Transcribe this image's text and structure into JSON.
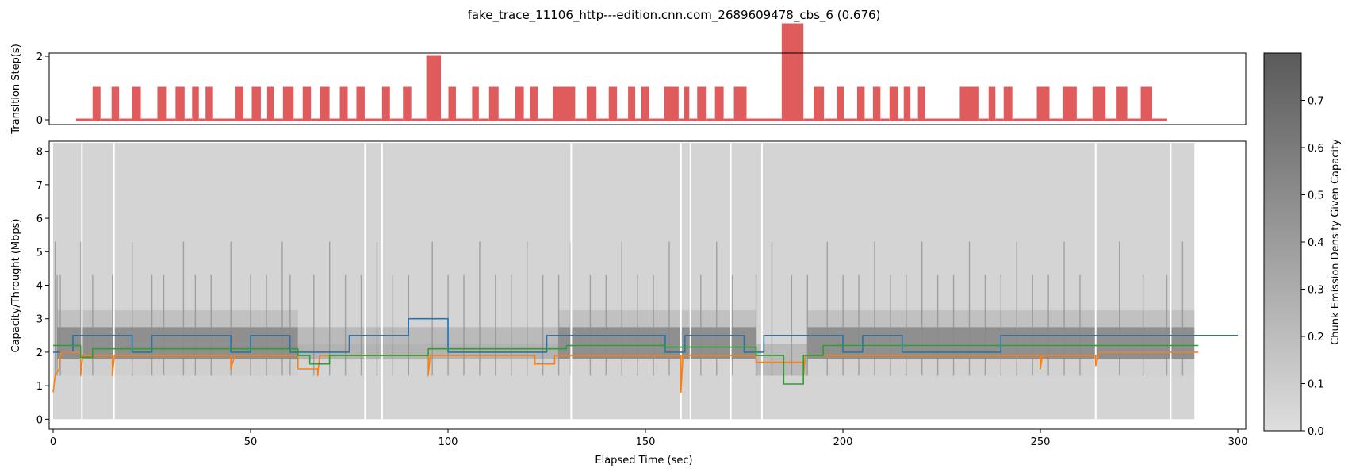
{
  "figure": {
    "title": "fake_trace_11106_http---edition.cnn.com_2689609478_cbs_6 (0.676)"
  },
  "chart_data": [
    {
      "type": "bar",
      "panel": "top",
      "ylabel": "Transition Step(s)",
      "xlim": [
        -1,
        302
      ],
      "ylim": [
        -0.15,
        2.1
      ],
      "yticks": [
        0,
        2
      ],
      "color": "#e05c5c",
      "bars": [
        [
          5.8,
          10.0,
          0
        ],
        [
          10.0,
          12.0,
          1
        ],
        [
          12.0,
          14.8,
          0
        ],
        [
          14.8,
          16.7,
          1
        ],
        [
          16.7,
          20.0,
          0
        ],
        [
          20.0,
          22.2,
          1
        ],
        [
          22.2,
          26.4,
          0
        ],
        [
          26.4,
          28.6,
          1
        ],
        [
          28.6,
          31.0,
          0
        ],
        [
          31.0,
          33.3,
          1
        ],
        [
          33.3,
          35.2,
          0
        ],
        [
          35.2,
          36.9,
          1
        ],
        [
          36.9,
          38.6,
          0
        ],
        [
          38.6,
          40.3,
          1
        ],
        [
          40.3,
          46.0,
          0
        ],
        [
          46.0,
          48.2,
          1
        ],
        [
          48.2,
          50.3,
          0
        ],
        [
          50.3,
          52.6,
          1
        ],
        [
          52.6,
          54.2,
          0
        ],
        [
          54.2,
          55.9,
          1
        ],
        [
          55.9,
          58.2,
          0
        ],
        [
          58.2,
          60.9,
          1
        ],
        [
          60.9,
          63.2,
          0
        ],
        [
          63.2,
          65.3,
          1
        ],
        [
          65.3,
          67.6,
          0
        ],
        [
          67.6,
          70.0,
          1
        ],
        [
          70.0,
          72.6,
          0
        ],
        [
          72.6,
          74.6,
          1
        ],
        [
          74.6,
          76.8,
          0
        ],
        [
          76.8,
          78.9,
          1
        ],
        [
          78.9,
          83.3,
          0
        ],
        [
          83.3,
          85.3,
          1
        ],
        [
          85.3,
          88.6,
          0
        ],
        [
          88.6,
          90.7,
          1
        ],
        [
          90.7,
          94.5,
          0
        ],
        [
          94.5,
          98.2,
          2
        ],
        [
          98.2,
          100.1,
          0
        ],
        [
          100.1,
          102.0,
          1
        ],
        [
          102.0,
          106.1,
          0
        ],
        [
          106.1,
          107.8,
          1
        ],
        [
          107.8,
          110.4,
          0
        ],
        [
          110.4,
          112.8,
          1
        ],
        [
          112.8,
          117.0,
          0
        ],
        [
          117.0,
          119.2,
          1
        ],
        [
          119.2,
          120.8,
          0
        ],
        [
          120.8,
          122.8,
          1
        ],
        [
          122.8,
          126.5,
          0
        ],
        [
          126.5,
          132.2,
          1
        ],
        [
          132.2,
          135.1,
          0
        ],
        [
          135.1,
          137.6,
          1
        ],
        [
          137.6,
          140.7,
          0
        ],
        [
          140.7,
          142.8,
          1
        ],
        [
          142.8,
          145.6,
          0
        ],
        [
          145.6,
          147.4,
          1
        ],
        [
          147.4,
          148.9,
          0
        ],
        [
          148.9,
          150.9,
          1
        ],
        [
          150.9,
          154.8,
          0
        ],
        [
          154.8,
          158.4,
          1
        ],
        [
          158.4,
          159.8,
          0
        ],
        [
          159.8,
          161.1,
          1
        ],
        [
          161.1,
          163.1,
          0
        ],
        [
          163.1,
          165.3,
          1
        ],
        [
          165.3,
          167.6,
          0
        ],
        [
          167.6,
          169.8,
          1
        ],
        [
          169.8,
          172.4,
          0
        ],
        [
          172.4,
          175.6,
          1
        ],
        [
          175.6,
          184.5,
          0
        ],
        [
          184.5,
          190.0,
          3
        ],
        [
          190.0,
          192.6,
          0
        ],
        [
          192.6,
          195.2,
          1
        ],
        [
          195.2,
          198.4,
          0
        ],
        [
          198.4,
          200.2,
          1
        ],
        [
          200.2,
          203.6,
          0
        ],
        [
          203.6,
          205.5,
          1
        ],
        [
          205.5,
          207.6,
          0
        ],
        [
          207.6,
          209.5,
          1
        ],
        [
          209.5,
          211.8,
          0
        ],
        [
          211.8,
          214.0,
          1
        ],
        [
          214.0,
          215.4,
          0
        ],
        [
          215.4,
          217.1,
          1
        ],
        [
          217.1,
          219.0,
          0
        ],
        [
          219.0,
          220.8,
          1
        ],
        [
          220.8,
          229.6,
          0
        ],
        [
          229.6,
          234.5,
          1
        ],
        [
          234.5,
          236.9,
          0
        ],
        [
          236.9,
          238.6,
          1
        ],
        [
          238.6,
          240.7,
          0
        ],
        [
          240.7,
          242.9,
          1
        ],
        [
          242.9,
          249.1,
          0
        ],
        [
          249.1,
          252.3,
          1
        ],
        [
          252.3,
          255.6,
          0
        ],
        [
          255.6,
          259.2,
          1
        ],
        [
          259.2,
          263.2,
          0
        ],
        [
          263.2,
          266.5,
          1
        ],
        [
          266.5,
          269.3,
          0
        ],
        [
          269.3,
          272.0,
          1
        ],
        [
          272.0,
          275.4,
          0
        ],
        [
          275.4,
          278.3,
          1
        ],
        [
          278.3,
          282.1,
          0
        ]
      ]
    },
    {
      "type": "heatmap",
      "panel": "main",
      "xlabel": "Elapsed Time (sec)",
      "ylabel": "Capacity/Throught (Mbps)",
      "xlim": [
        -1,
        302
      ],
      "ylim": [
        -0.3,
        8.3
      ],
      "xticks": [
        0,
        50,
        100,
        150,
        200,
        250,
        300
      ],
      "yticks": [
        0,
        1,
        2,
        3,
        4,
        5,
        6,
        7,
        8
      ],
      "heatmap": {
        "y_extent": [
          0,
          8.25
        ],
        "x_extent": [
          0,
          289
        ],
        "levels": [
          [
            0,
            8.25,
            0.06
          ]
        ],
        "bands": [
          [
            1,
            62,
            1.8,
            2.75,
            0.55
          ],
          [
            1,
            62,
            2.75,
            3.25,
            0.2
          ],
          [
            1,
            62,
            1.3,
            1.8,
            0.1
          ],
          [
            62,
            128,
            1.8,
            2.25,
            0.3
          ],
          [
            62,
            128,
            2.25,
            2.75,
            0.25
          ],
          [
            128,
            178,
            1.8,
            2.75,
            0.55
          ],
          [
            128,
            178,
            2.75,
            3.25,
            0.2
          ],
          [
            178,
            191,
            1.3,
            2.25,
            0.25
          ],
          [
            191,
            289,
            1.8,
            2.75,
            0.55
          ],
          [
            191,
            289,
            2.75,
            3.25,
            0.2
          ],
          [
            191,
            289,
            1.3,
            1.8,
            0.08
          ]
        ],
        "spikes": [
          0.5,
          1.0,
          1.8,
          7.0,
          10.0,
          15.0,
          20.0,
          25.0,
          28.0,
          33.0,
          36.0,
          40.0,
          45.0,
          50.0,
          54.0,
          58.0,
          60.0,
          66.0,
          70.0,
          74.0,
          78.0,
          82.0,
          86.0,
          90.0,
          96.0,
          100.0,
          104.0,
          108.0,
          112.0,
          116.0,
          120.0,
          124.0,
          128.0,
          131.0,
          136.0,
          140.0,
          144.0,
          148.0,
          152.0,
          156.0,
          159.0,
          164.0,
          168.0,
          172.0,
          178.0,
          182.0,
          187.0,
          191.0,
          196.0,
          200.0,
          204.0,
          208.0,
          212.0,
          216.0,
          220.0,
          224.0,
          228.0,
          232.0,
          236.0,
          240.0,
          244.0,
          248.0,
          252.0,
          256.0,
          260.0,
          264.0,
          270.0,
          276.0,
          282.0,
          286.0
        ],
        "gaps": [
          7.3,
          15.4,
          79.0,
          83.3,
          131.2,
          159.0,
          161.4,
          171.6,
          179.5,
          264.0,
          283.0
        ]
      },
      "colorbar": {
        "label": "Chunk Emission Density Given Capacity",
        "range": [
          0,
          0.8
        ],
        "ticks": [
          "0.0",
          "0.1",
          "0.2",
          "0.3",
          "0.4",
          "0.5",
          "0.6",
          "0.7"
        ]
      },
      "series": [
        {
          "color": "#1f77b4",
          "points": [
            [
              0,
              2.0
            ],
            [
              5,
              2.0
            ],
            [
              5,
              2.5
            ],
            [
              20,
              2.5
            ],
            [
              20,
              2.0
            ],
            [
              25,
              2.0
            ],
            [
              25,
              2.5
            ],
            [
              45,
              2.5
            ],
            [
              45,
              2.0
            ],
            [
              50,
              2.0
            ],
            [
              50,
              2.5
            ],
            [
              60,
              2.5
            ],
            [
              60,
              2.0
            ],
            [
              75,
              2.0
            ],
            [
              75,
              2.5
            ],
            [
              90,
              2.5
            ],
            [
              90,
              3.0
            ],
            [
              100,
              3.0
            ],
            [
              100,
              2.0
            ],
            [
              125,
              2.0
            ],
            [
              125,
              2.5
            ],
            [
              155,
              2.5
            ],
            [
              155,
              2.0
            ],
            [
              160,
              2.0
            ],
            [
              160,
              2.5
            ],
            [
              175,
              2.5
            ],
            [
              175,
              2.0
            ],
            [
              180,
              2.0
            ],
            [
              180,
              2.5
            ],
            [
              200,
              2.5
            ],
            [
              200,
              2.0
            ],
            [
              205,
              2.0
            ],
            [
              205,
              2.5
            ],
            [
              215,
              2.5
            ],
            [
              215,
              2.0
            ],
            [
              240,
              2.0
            ],
            [
              240,
              2.5
            ],
            [
              300,
              2.5
            ]
          ]
        },
        {
          "color": "#ff7f0e",
          "points": [
            [
              0,
              0.8
            ],
            [
              0.5,
              1.3
            ],
            [
              1.5,
              1.5
            ],
            [
              2,
              2.0
            ],
            [
              7,
              2.0
            ],
            [
              7,
              1.3
            ],
            [
              7.5,
              1.9
            ],
            [
              15,
              1.9
            ],
            [
              15,
              1.3
            ],
            [
              15.5,
              1.9
            ],
            [
              45,
              1.9
            ],
            [
              45,
              1.5
            ],
            [
              46,
              1.9
            ],
            [
              62,
              1.9
            ],
            [
              62,
              1.5
            ],
            [
              67,
              1.5
            ],
            [
              67,
              1.3
            ],
            [
              67.5,
              1.9
            ],
            [
              95,
              1.9
            ],
            [
              95,
              1.3
            ],
            [
              95.5,
              1.9
            ],
            [
              122,
              1.9
            ],
            [
              122,
              1.65
            ],
            [
              127,
              1.65
            ],
            [
              127,
              1.9
            ],
            [
              155,
              1.9
            ],
            [
              159,
              1.9
            ],
            [
              159,
              0.8
            ],
            [
              159.5,
              1.9
            ],
            [
              178,
              1.9
            ],
            [
              178,
              1.7
            ],
            [
              190,
              1.7
            ],
            [
              190,
              1.3
            ],
            [
              190.5,
              1.9
            ],
            [
              250,
              1.9
            ],
            [
              250,
              1.5
            ],
            [
              250.5,
              1.9
            ],
            [
              264,
              1.9
            ],
            [
              264,
              1.6
            ],
            [
              265,
              2.0
            ],
            [
              290,
              2.0
            ]
          ]
        },
        {
          "color": "#2ca02c",
          "points": [
            [
              0,
              2.2
            ],
            [
              7,
              2.2
            ],
            [
              7,
              1.85
            ],
            [
              10,
              1.85
            ],
            [
              10,
              2.1
            ],
            [
              62,
              2.1
            ],
            [
              62,
              1.9
            ],
            [
              65,
              1.9
            ],
            [
              65,
              1.65
            ],
            [
              70,
              1.65
            ],
            [
              70,
              1.9
            ],
            [
              95,
              1.9
            ],
            [
              95,
              2.1
            ],
            [
              130,
              2.1
            ],
            [
              130,
              2.2
            ],
            [
              155,
              2.2
            ],
            [
              155,
              2.15
            ],
            [
              178,
              2.15
            ],
            [
              178,
              1.9
            ],
            [
              185,
              1.9
            ],
            [
              185,
              1.05
            ],
            [
              190,
              1.05
            ],
            [
              190,
              1.9
            ],
            [
              195,
              1.9
            ],
            [
              195,
              2.2
            ],
            [
              290,
              2.2
            ]
          ]
        }
      ]
    }
  ]
}
